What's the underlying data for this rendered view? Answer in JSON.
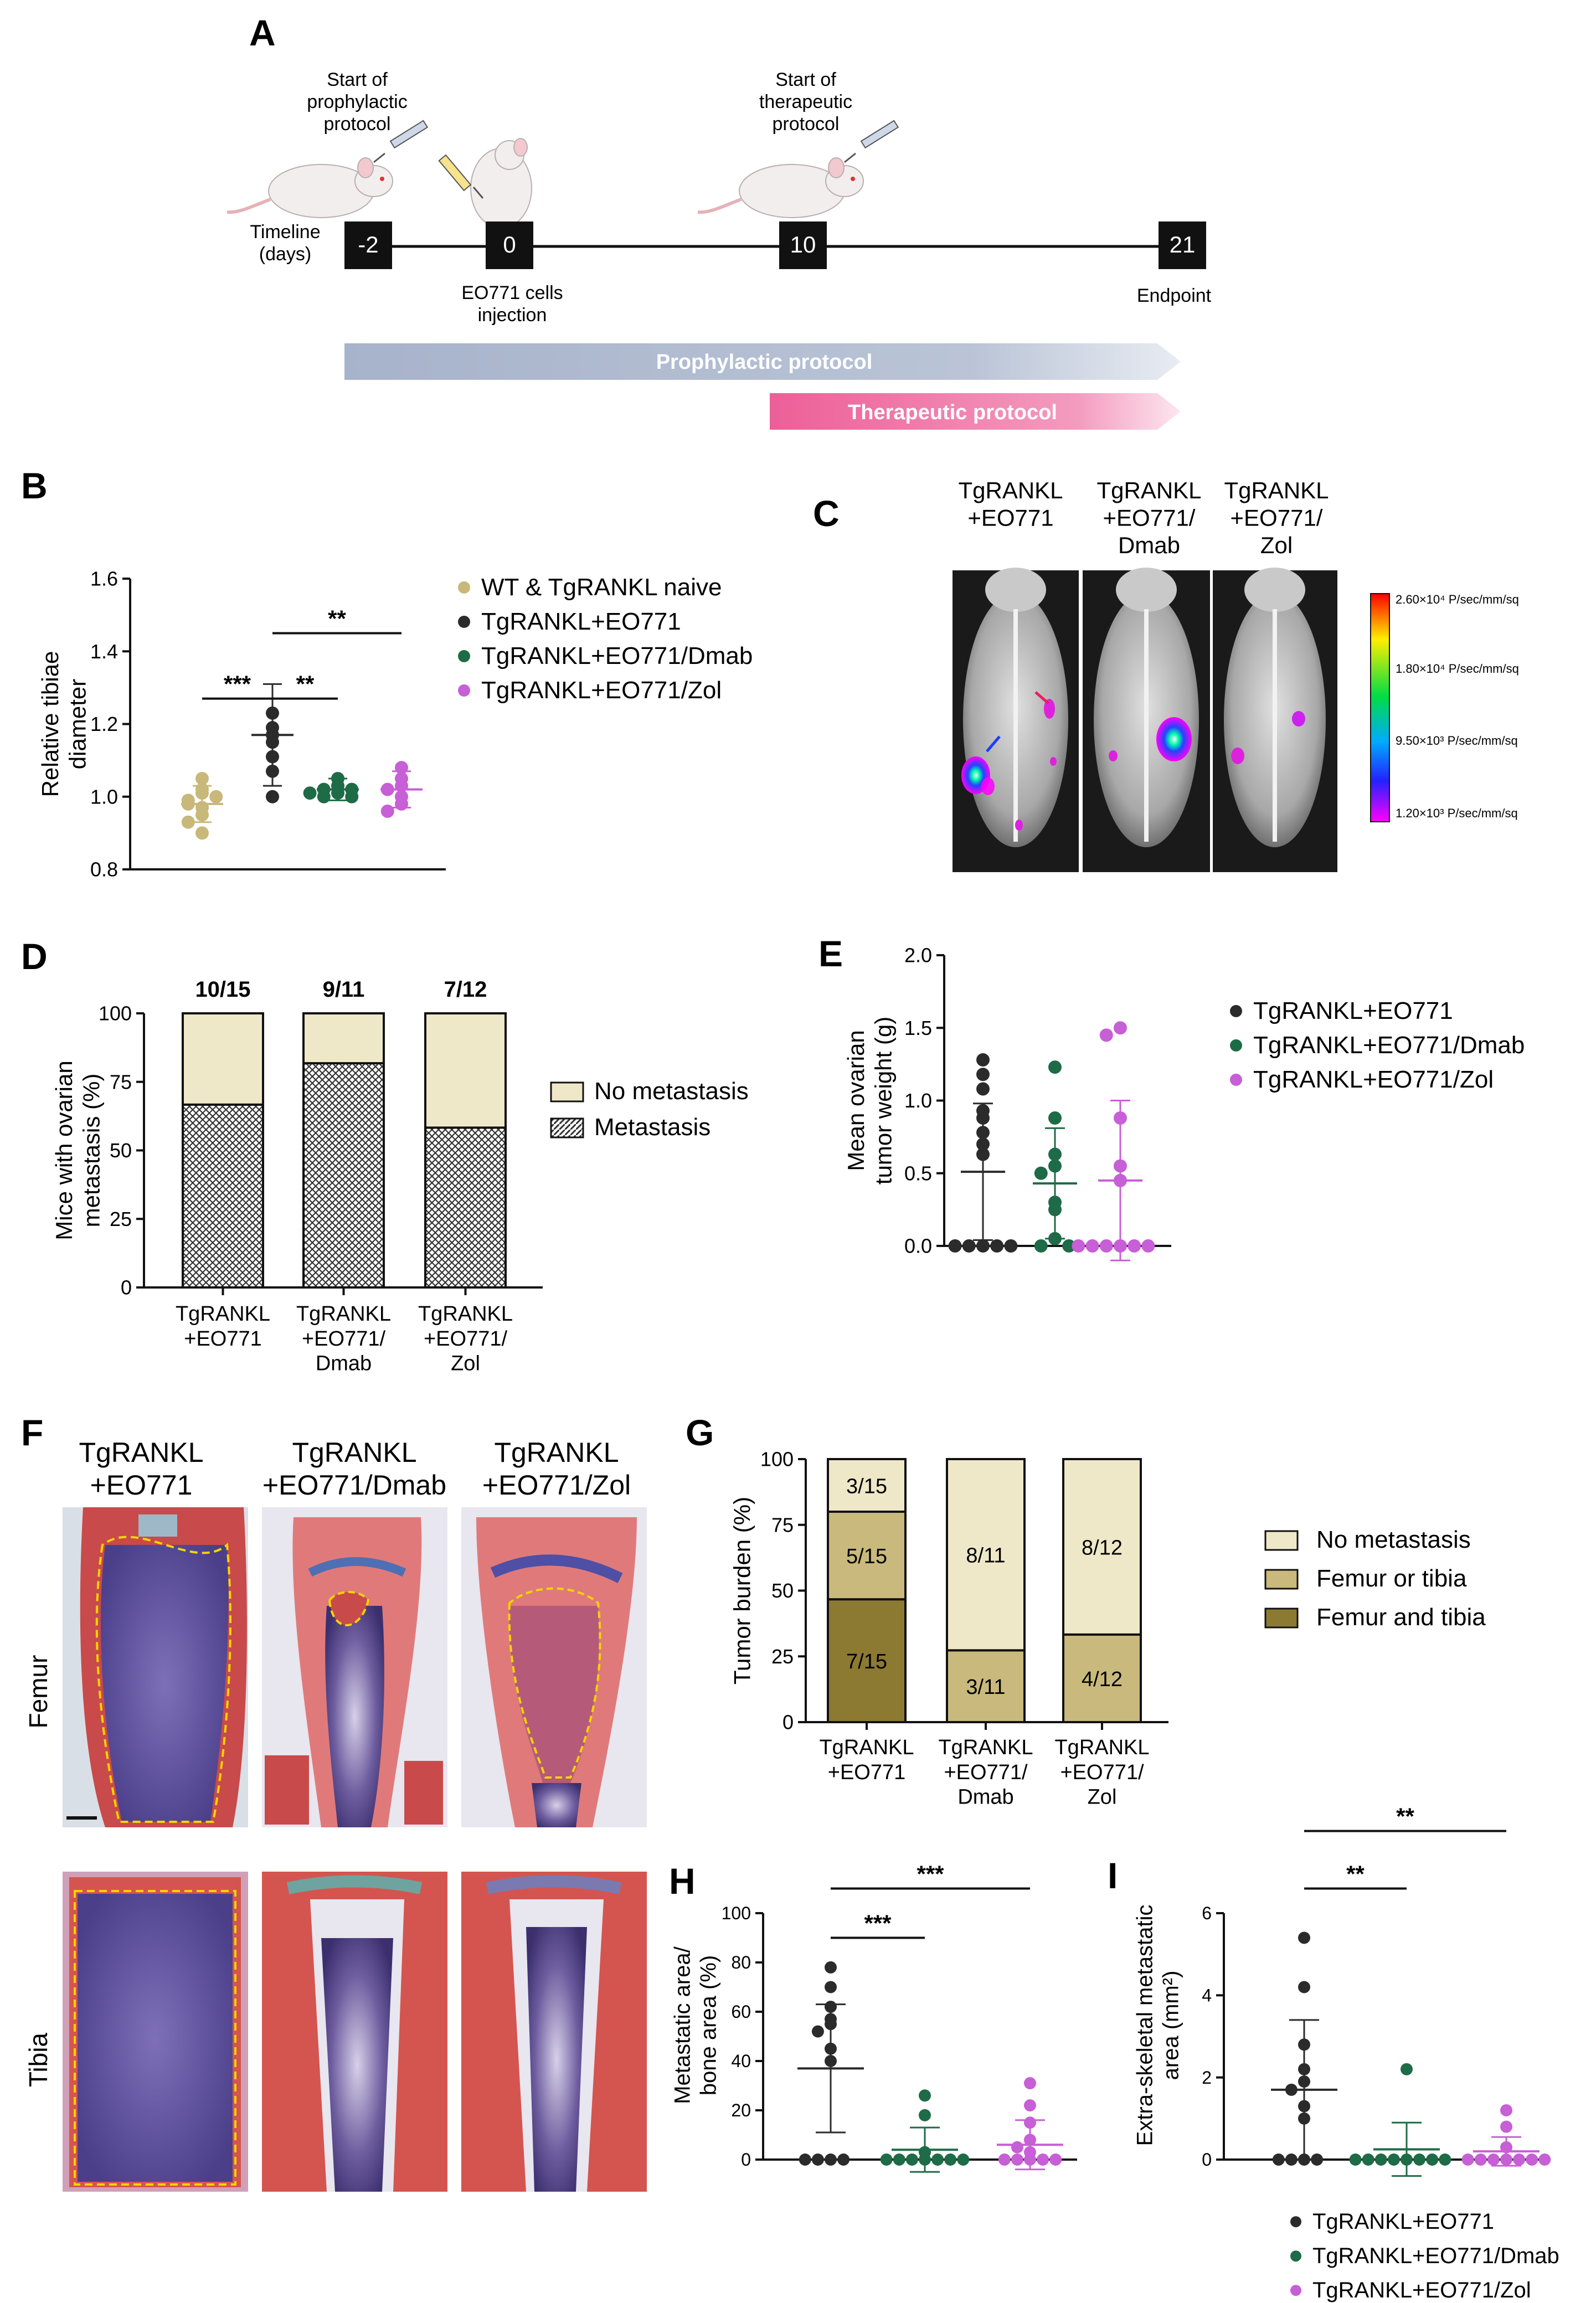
{
  "colors": {
    "naive": "#c8b87a",
    "tgrankl": "#2b2b2b",
    "dmab": "#1e6b47",
    "zol": "#c75fd6",
    "timeline_box": "#111111",
    "prophylactic_bar": "#a7b3cb",
    "therapeutic_bar": "#ef7aa8",
    "no_meta": "#efe8c8",
    "femur_or_tibia": "#c9b97c",
    "femur_and_tibia": "#8c7a32",
    "dashed_outline": "#f5d400"
  },
  "panelA": {
    "letter": "A",
    "timeline_label": "Timeline\n(days)",
    "days": [
      "-2",
      "0",
      "10",
      "21"
    ],
    "start_prophylactic": "Start of\nprophylactic\nprotocol",
    "start_therapeutic": "Start of\ntherapeutic\nprotocol",
    "injection_label": "EO771 cells\ninjection",
    "endpoint_label": "Endpoint",
    "prophylactic_bar_label": "Prophylactic protocol",
    "therapeutic_bar_label": "Therapeutic protocol",
    "icons": [
      "mouse-injection-icon",
      "mouse-tail-vein-injection-icon",
      "mouse-injection-icon"
    ]
  },
  "panelC": {
    "letter": "C",
    "headers": [
      "TgRANKL\n+EO771",
      "TgRANKL\n+EO771/\nDmab",
      "TgRANKL\n+EO771/\nZol"
    ],
    "scale_labels": [
      "2.60×10⁴ P/sec/mm/sq",
      "1.80×10⁴ P/sec/mm/sq",
      "9.50×10³ P/sec/mm/sq",
      "1.20×10³ P/sec/mm/sq"
    ],
    "icons": [
      "xray-mouse-image",
      "xray-mouse-image",
      "xray-mouse-image",
      "bioluminescence-color-scale"
    ]
  },
  "panelF": {
    "letter": "F",
    "headers": [
      "TgRANKL\n+EO771",
      "TgRANKL\n+EO771/Dmab",
      "TgRANKL\n+EO771/Zol"
    ],
    "row_labels": [
      "Femur",
      "Tibia"
    ],
    "icons": [
      "histology-femur-image",
      "histology-tibia-image"
    ]
  },
  "chart_data": [
    {
      "id": "B",
      "type": "scatter",
      "panel_letter": "B",
      "ylabel": "Relative tibiae\ndiameter",
      "ylim": [
        0.8,
        1.6
      ],
      "yticks": [
        0.8,
        1.0,
        1.2,
        1.4,
        1.6
      ],
      "legend_position": "right",
      "series": [
        {
          "name": "WT & TgRANKL naive",
          "color": "#c8b87a",
          "mean": 0.98,
          "sd": 0.05,
          "points": [
            1.02,
            1.01,
            1.05,
            0.99,
            0.97,
            0.98,
            0.95,
            0.93,
            0.9,
            1.0
          ]
        },
        {
          "name": "TgRANKL+EO771",
          "color": "#2b2b2b",
          "mean": 1.17,
          "sd": 0.14,
          "points": [
            1.23,
            1.19,
            1.17,
            1.15,
            1.11,
            1.07,
            1.0
          ]
        },
        {
          "name": "TgRANKL+EO771/Dmab",
          "color": "#1e6b47",
          "mean": 1.02,
          "sd": 0.03,
          "points": [
            1.05,
            1.03,
            1.02,
            1.02,
            1.01,
            1.0,
            1.0,
            1.01
          ]
        },
        {
          "name": "TgRANKL+EO771/Zol",
          "color": "#c75fd6",
          "mean": 1.02,
          "sd": 0.05,
          "points": [
            1.08,
            1.05,
            1.03,
            1.02,
            1.0,
            0.98,
            0.96
          ]
        }
      ],
      "significance": [
        {
          "from": 0,
          "to": 1,
          "label": "***",
          "y": 1.27
        },
        {
          "from": 1,
          "to": 2,
          "label": "**",
          "y": 1.27
        },
        {
          "from": 1,
          "to": 3,
          "label": "**",
          "y": 1.45
        }
      ]
    },
    {
      "id": "D",
      "type": "bar",
      "panel_letter": "D",
      "ylabel": "Mice with ovarian\nmetastasis (%)",
      "ylim": [
        0,
        100
      ],
      "yticks": [
        0,
        25,
        50,
        75,
        100
      ],
      "categories": [
        "TgRANKL\n+EO771",
        "TgRANKL\n+EO771/\nDmab",
        "TgRANKL\n+EO771/\nZol"
      ],
      "top_labels": [
        "10/15",
        "9/11",
        "7/12"
      ],
      "series": [
        {
          "name": "Metastasis",
          "pattern": "crosshatch",
          "values": [
            66.7,
            81.8,
            58.3
          ]
        },
        {
          "name": "No metastasis",
          "color": "#efe8c8",
          "values": [
            33.3,
            18.2,
            41.7
          ]
        }
      ],
      "legend_order": [
        "No metastasis",
        "Metastasis"
      ]
    },
    {
      "id": "E",
      "type": "scatter",
      "panel_letter": "E",
      "ylabel": "Mean ovarian\ntumor weight (g)",
      "ylim": [
        0.0,
        2.0
      ],
      "yticks": [
        0.0,
        0.5,
        1.0,
        1.5,
        2.0
      ],
      "ytick_labels": [
        "0.0",
        "0.5",
        "1.0",
        "1.5",
        "2.0"
      ],
      "series": [
        {
          "name": "TgRANKL+EO771",
          "color": "#2b2b2b",
          "mean": 0.51,
          "sd": 0.47,
          "points": [
            1.28,
            1.18,
            1.08,
            0.93,
            0.88,
            0.78,
            0.7,
            0.63,
            0,
            0,
            0,
            0,
            0
          ]
        },
        {
          "name": "TgRANKL+EO771/Dmab",
          "color": "#1e6b47",
          "mean": 0.43,
          "sd": 0.38,
          "points": [
            1.23,
            0.88,
            0.63,
            0.55,
            0.5,
            0.3,
            0.25,
            0.05,
            0,
            0
          ]
        },
        {
          "name": "TgRANKL+EO771/Zol",
          "color": "#c75fd6",
          "mean": 0.45,
          "sd": 0.55,
          "points": [
            1.5,
            1.45,
            0.88,
            0.55,
            0.45,
            0,
            0,
            0,
            0,
            0,
            0
          ]
        }
      ]
    },
    {
      "id": "G",
      "type": "bar",
      "panel_letter": "G",
      "ylabel": "Tumor burden (%)",
      "ylim": [
        0,
        100
      ],
      "yticks": [
        0,
        25,
        50,
        75,
        100
      ],
      "categories": [
        "TgRANKL\n+EO771",
        "TgRANKL\n+EO771/\nDmab",
        "TgRANKL\n+EO771/\nZol"
      ],
      "series": [
        {
          "name": "Femur and tibia",
          "color": "#8c7a32",
          "values": [
            46.7,
            0,
            0
          ],
          "labels": [
            "7/15",
            "",
            ""
          ]
        },
        {
          "name": "Femur or tibia",
          "color": "#c9b97c",
          "values": [
            33.3,
            27.3,
            33.3
          ],
          "labels": [
            "5/15",
            "3/11",
            "4/12"
          ]
        },
        {
          "name": "No metastasis",
          "color": "#efe8c8",
          "values": [
            20.0,
            72.7,
            66.7
          ],
          "labels": [
            "3/15",
            "8/11",
            "8/12"
          ]
        }
      ],
      "legend_order": [
        "No metastasis",
        "Femur or tibia",
        "Femur and tibia"
      ]
    },
    {
      "id": "H",
      "type": "scatter",
      "panel_letter": "H",
      "ylabel": "Metastatic area/\nbone area (%)",
      "ylim": [
        0,
        100
      ],
      "yticks": [
        0,
        20,
        40,
        60,
        80,
        100
      ],
      "series": [
        {
          "name": "TgRANKL+EO771",
          "color": "#2b2b2b",
          "mean": 37,
          "sd": 26,
          "points": [
            78,
            70,
            62,
            57,
            55,
            52,
            45,
            40,
            0,
            0,
            0,
            0
          ]
        },
        {
          "name": "TgRANKL+EO771/Dmab",
          "color": "#1e6b47",
          "mean": 4,
          "sd": 9,
          "points": [
            26,
            18,
            3,
            0,
            0,
            0,
            0,
            0,
            0,
            0
          ]
        },
        {
          "name": "TgRANKL+EO771/Zol",
          "color": "#c75fd6",
          "mean": 6,
          "sd": 10,
          "points": [
            31,
            22,
            15,
            8,
            5,
            3,
            0,
            0,
            0,
            0,
            0
          ]
        }
      ],
      "significance": [
        {
          "from": 0,
          "to": 1,
          "label": "***",
          "y": 90
        },
        {
          "from": 0,
          "to": 2,
          "label": "***",
          "y": 110
        }
      ]
    },
    {
      "id": "I",
      "type": "scatter",
      "panel_letter": "I",
      "ylabel": "Extra-skeletal metastatic\narea (mm²)",
      "ylim": [
        0,
        6
      ],
      "yticks": [
        0,
        2,
        4,
        6
      ],
      "legend_position": "bottom",
      "series": [
        {
          "name": "TgRANKL+EO771",
          "color": "#2b2b2b",
          "mean": 1.7,
          "sd": 1.7,
          "points": [
            5.4,
            4.2,
            2.8,
            2.2,
            1.9,
            1.7,
            1.3,
            1.0,
            0,
            0,
            0,
            0
          ]
        },
        {
          "name": "TgRANKL+EO771/Dmab",
          "color": "#1e6b47",
          "mean": 0.25,
          "sd": 0.65,
          "points": [
            2.2,
            0,
            0,
            0,
            0,
            0,
            0,
            0,
            0
          ]
        },
        {
          "name": "TgRANKL+EO771/Zol",
          "color": "#c75fd6",
          "mean": 0.2,
          "sd": 0.35,
          "points": [
            1.2,
            0.8,
            0.3,
            0,
            0,
            0,
            0,
            0,
            0,
            0
          ]
        }
      ],
      "significance": [
        {
          "from": 0,
          "to": 1,
          "label": "**",
          "y": 6.6
        },
        {
          "from": 0,
          "to": 2,
          "label": "**",
          "y": 8.0
        }
      ]
    }
  ]
}
